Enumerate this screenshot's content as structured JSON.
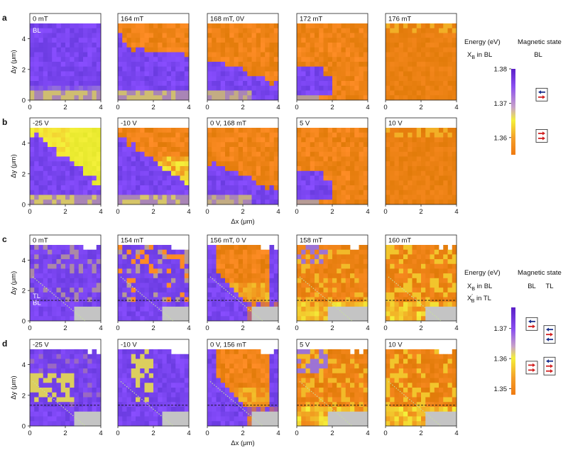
{
  "figure_title": "",
  "colors": {
    "purple": "#7a45f0",
    "orange": "#f08418",
    "yellow": "#f4f03a",
    "gray": "#c4c4c4",
    "spin_up_blue": "#1b2f8c",
    "spin_red": "#d12020",
    "grid_dashed": "#111111",
    "diag_dotted": "#c8e39a"
  },
  "axes": {
    "x_label": "Δx (μm)",
    "y_label": "Δy (μm)",
    "x_ticks": [
      "0",
      "2",
      "4"
    ],
    "y_ticks": [
      "0",
      "2",
      "4"
    ],
    "x_range": [
      0,
      4
    ],
    "y_range": [
      0,
      5
    ]
  },
  "chart_data": [
    {
      "type": "heatmap",
      "row": "a",
      "title_prefix": "a",
      "panels": [
        {
          "label": "0 mT",
          "inset": "BL",
          "B_mT": 0,
          "V": 0,
          "state": "purple"
        },
        {
          "label": "164 mT",
          "B_mT": 164,
          "V": 0,
          "state": "mixed_top_orange"
        },
        {
          "label": "168 mT, 0V",
          "B_mT": 168,
          "V": 0,
          "state": "mixed_more_orange"
        },
        {
          "label": "172 mT",
          "B_mT": 172,
          "V": 0,
          "state": "mostly_orange"
        },
        {
          "label": "176 mT",
          "B_mT": 176,
          "V": 0,
          "state": "orange"
        }
      ]
    },
    {
      "type": "heatmap",
      "row": "b",
      "title_prefix": "b",
      "panels": [
        {
          "label": "-25 V",
          "B_mT": 168,
          "V": -25,
          "state": "purple_yellow"
        },
        {
          "label": "-10 V",
          "B_mT": 168,
          "V": -10,
          "state": "purple_yellow_orange"
        },
        {
          "label": "0 V, 168 mT",
          "B_mT": 168,
          "V": 0,
          "state": "mixed_more_orange"
        },
        {
          "label": "5 V",
          "B_mT": 168,
          "V": 5,
          "state": "mostly_orange"
        },
        {
          "label": "10 V",
          "B_mT": 168,
          "V": 10,
          "state": "orange"
        }
      ]
    },
    {
      "type": "heatmap",
      "row": "c",
      "title_prefix": "c",
      "panels": [
        {
          "label": "0 mT",
          "inset_top": "TL",
          "inset_bottom": "BL",
          "B_mT": 0,
          "V": 0,
          "state": "tb_purple"
        },
        {
          "label": "154 mT",
          "B_mT": 154,
          "V": 0,
          "state": "tb_purple_patchy"
        },
        {
          "label": "156 mT, 0 V",
          "B_mT": 156,
          "V": 0,
          "state": "tb_diag_orange"
        },
        {
          "label": "158 mT",
          "B_mT": 158,
          "V": 0,
          "state": "tb_mostly_orange"
        },
        {
          "label": "160 mT",
          "B_mT": 160,
          "V": 0,
          "state": "tb_orange"
        }
      ]
    },
    {
      "type": "heatmap",
      "row": "d",
      "title_prefix": "d",
      "panels": [
        {
          "label": "-25 V",
          "B_mT": 156,
          "V": -25,
          "state": "tb_purple_yellow"
        },
        {
          "label": "-10 V",
          "B_mT": 156,
          "V": -10,
          "state": "tb_purple_yellow2"
        },
        {
          "label": "0 V, 156 mT",
          "B_mT": 156,
          "V": 0,
          "state": "tb_diag_orange"
        },
        {
          "label": "5 V",
          "B_mT": 156,
          "V": 5,
          "state": "tb_mostly_orange"
        },
        {
          "label": "10 V",
          "B_mT": 156,
          "V": 10,
          "state": "tb_orange"
        }
      ]
    }
  ],
  "colorbars": [
    {
      "group": "ab",
      "header_left": "Energy (eV)",
      "header_right": "Magnetic state",
      "sub_left": "XB in BL",
      "sub_left_main": "X",
      "sub_left_sub": "B",
      "sub_left_rest": " in BL",
      "sub_right": "BL",
      "range": [
        1.355,
        1.38
      ],
      "ticks": [
        1.38,
        1.37,
        1.36
      ],
      "tick_labels": [
        "1.38",
        "1.37",
        "1.36"
      ],
      "states": [
        {
          "energy": 1.3725,
          "arrows": [
            "left-blue",
            "right-red"
          ]
        },
        {
          "energy": 1.3605,
          "arrows": [
            "right-red",
            "right-red"
          ]
        }
      ]
    },
    {
      "group": "cd",
      "header_left": "Energy (eV)",
      "header_right": "Magnetic state",
      "sub_left": "XB in BL",
      "sub_left_main": "X",
      "sub_left_sub": "B",
      "sub_left_rest": " in BL",
      "sub_left2": "X'B in TL",
      "sub_left2_main": "X",
      "sub_left2_sub": "B",
      "sub_left2_rest": " in TL",
      "sub_right_1": "BL",
      "sub_right_2": "TL",
      "range": [
        1.348,
        1.377
      ],
      "ticks": [
        1.37,
        1.36,
        1.35
      ],
      "tick_labels": [
        "1.37",
        "1.36",
        "1.35"
      ],
      "states_bl": [
        {
          "energy": 1.3715,
          "arrows": [
            "left-blue",
            "right-red"
          ]
        },
        {
          "energy": 1.357,
          "arrows": [
            "right-red",
            "right-red"
          ]
        }
      ],
      "states_tl": [
        {
          "energy": 1.368,
          "arrows": [
            "left-blue",
            "right-red",
            "left-blue"
          ]
        },
        {
          "energy": 1.3575,
          "arrows": [
            "left-blue",
            "right-red",
            "right-red"
          ]
        }
      ]
    }
  ]
}
